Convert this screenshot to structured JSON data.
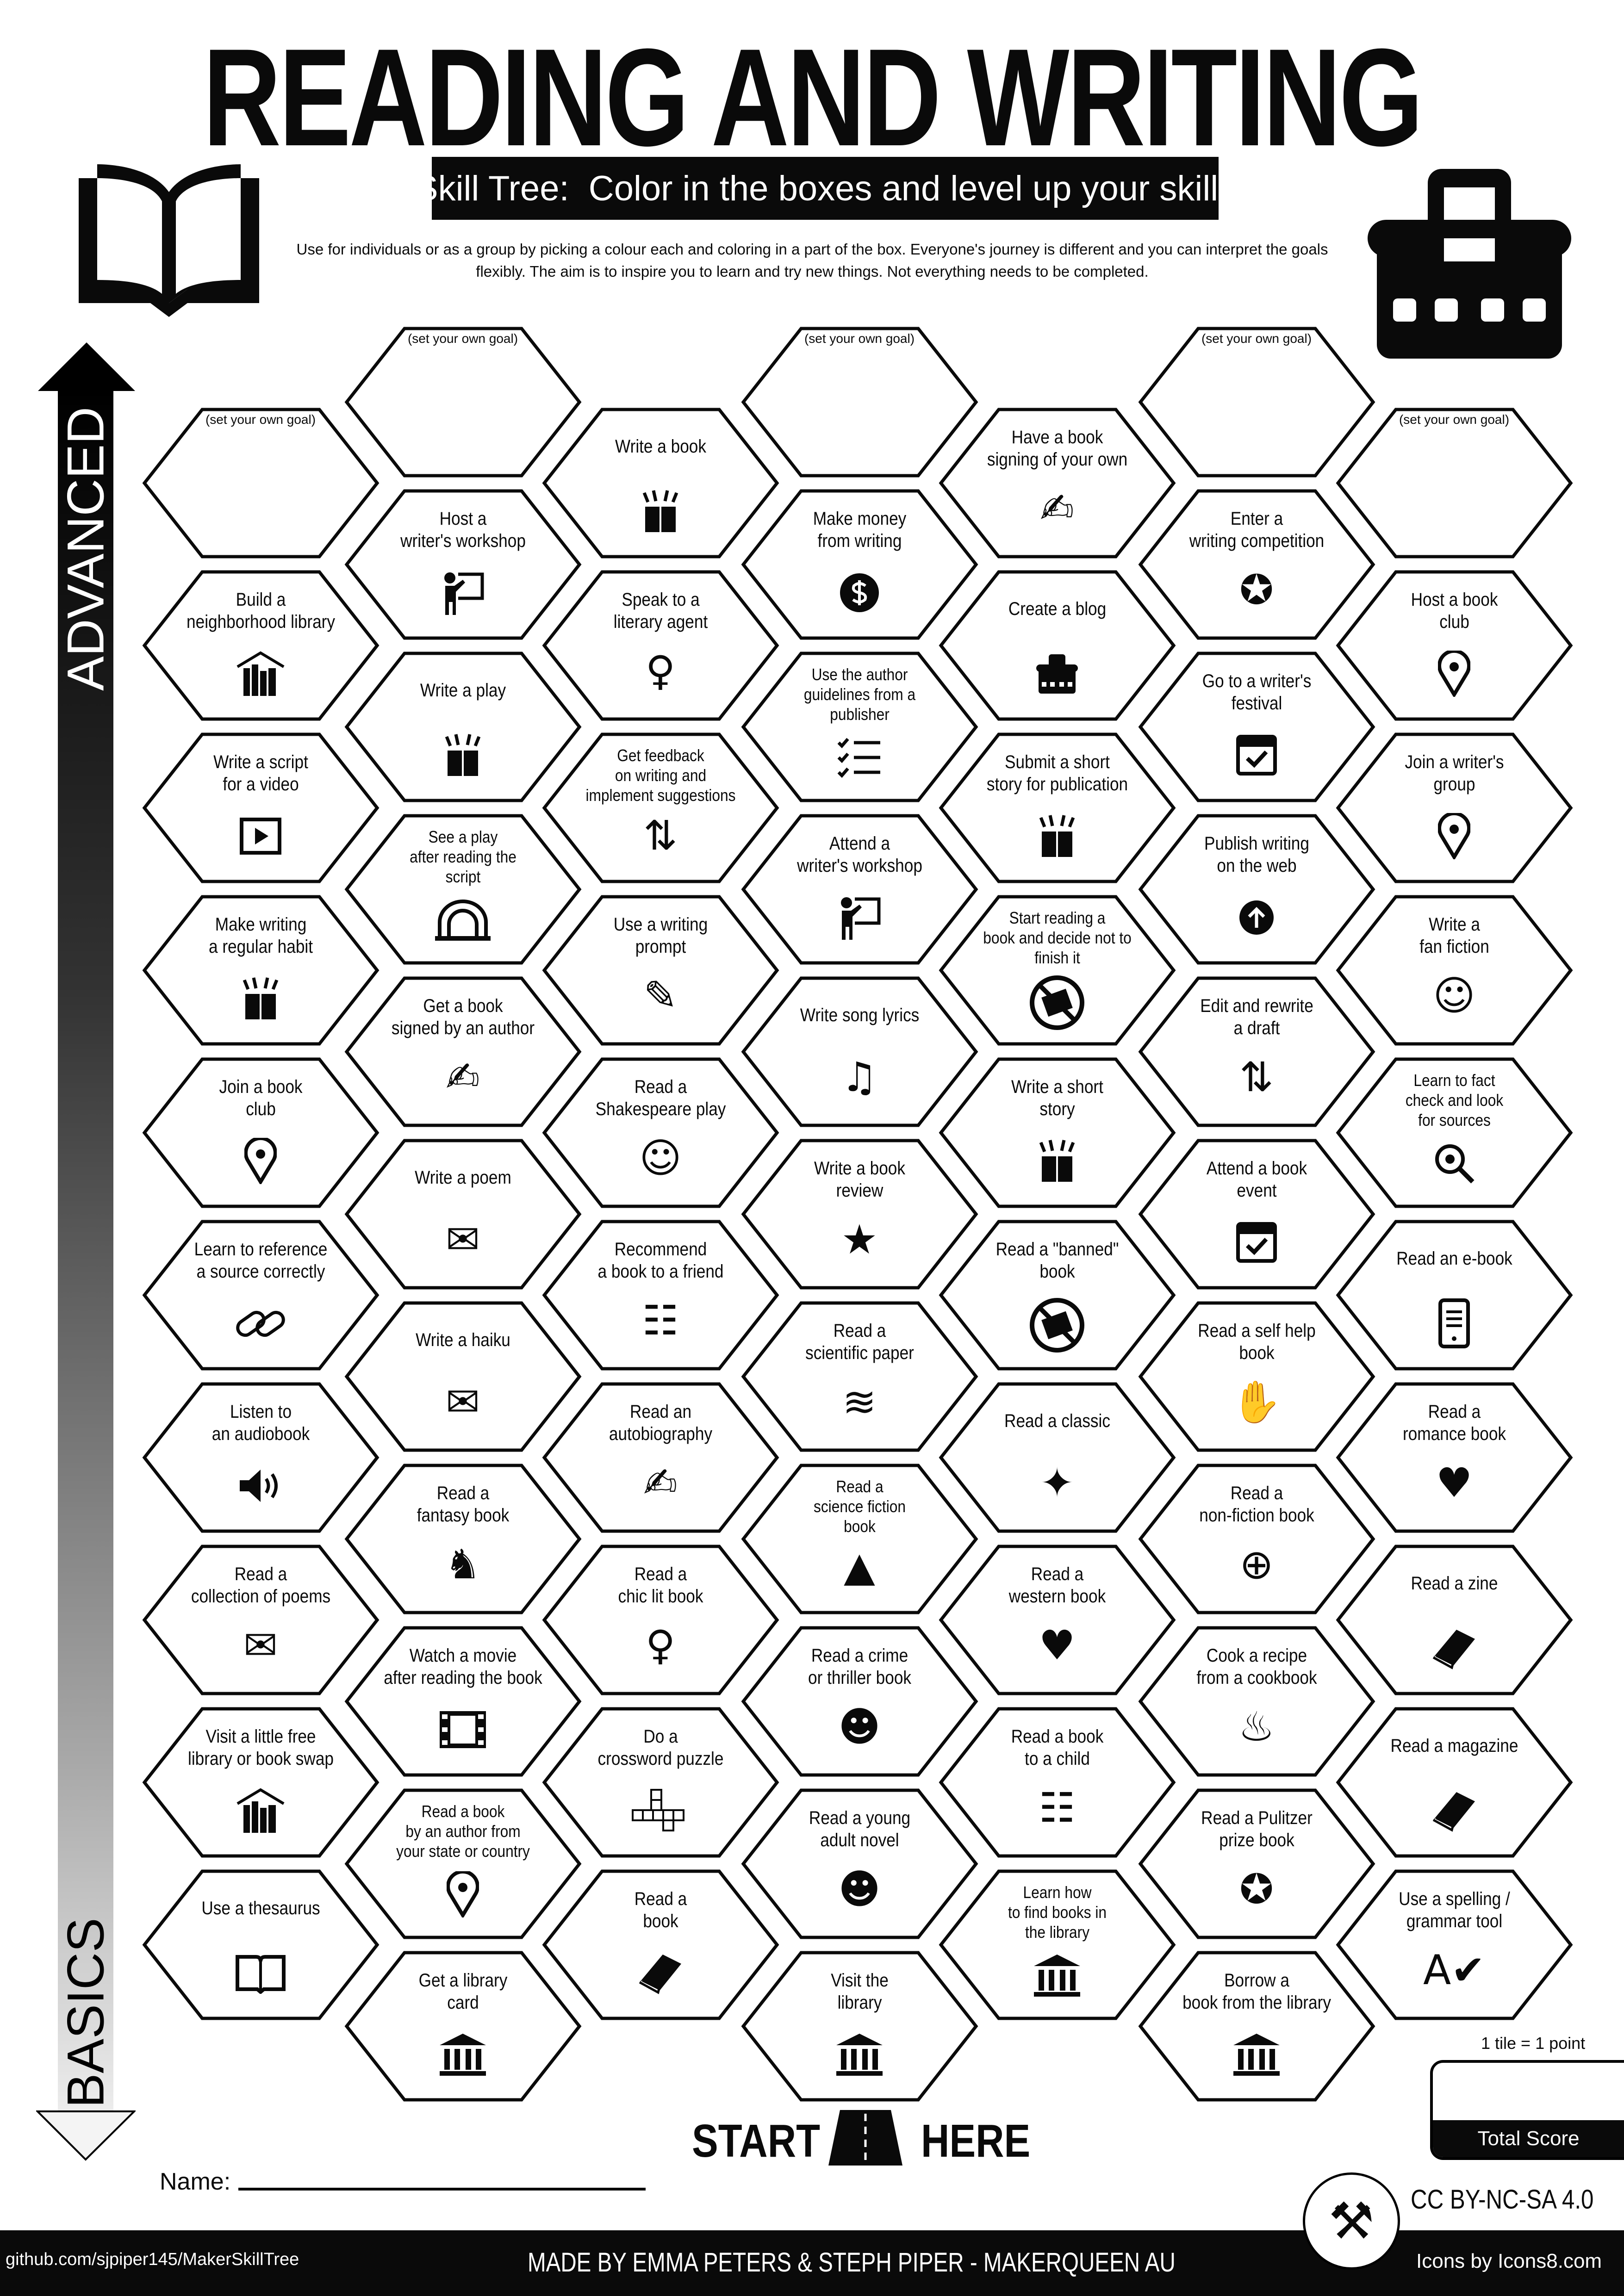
{
  "header": {
    "title": "READING AND WRITING",
    "subtitle": "Skill Tree:  Color in the boxes and level up your skills",
    "intro": "Use for individuals or as a group by picking a colour each and coloring in a part of the box.  Everyone's journey is different and you can interpret the goals flexibly.  The aim is to inspire you to learn and try new things. Not everything needs to be completed.",
    "left_icon": "open-book-icon",
    "right_icon": "typewriter-icon"
  },
  "axis": {
    "top_label": "ADVANCED",
    "bottom_label": "BASICS"
  },
  "goal_text": "(set your own goal)",
  "columns": [
    [
      {
        "goal": true
      },
      {
        "label": "Build a\nneighborhood library",
        "icon": "library-shelf"
      },
      {
        "label": "Write a script\nfor a video",
        "icon": "play-box"
      },
      {
        "label": "Make writing\na regular habit",
        "icon": "book-sparkle"
      },
      {
        "label": "Join a book\nclub",
        "icon": "location-pin"
      },
      {
        "label": "Learn to reference\na source correctly",
        "icon": "chain-link"
      },
      {
        "label": "Listen to\nan audiobook",
        "icon": "speaker"
      },
      {
        "label": "Read a\ncollection of poems",
        "icon": "poem-scroll"
      },
      {
        "label": "Visit a little free\nlibrary or book swap",
        "icon": "library-shelf"
      },
      {
        "label": "Use a thesaurus",
        "icon": "open-book"
      }
    ],
    [
      {
        "goal": true
      },
      {
        "label": "Host a\nwriter's workshop",
        "icon": "teacher-board"
      },
      {
        "label": "Write a play",
        "icon": "book-sparkle"
      },
      {
        "label": "See a play\nafter reading the\nscript",
        "icon": "theater-stage"
      },
      {
        "label": "Get a book\nsigned by an author",
        "icon": "signature"
      },
      {
        "label": "Write a poem",
        "icon": "poem-scroll"
      },
      {
        "label": "Write a haiku",
        "icon": "poem-scroll"
      },
      {
        "label": "Read a\nfantasy book",
        "icon": "dragon"
      },
      {
        "label": "Watch a movie\nafter reading the book",
        "icon": "film"
      },
      {
        "label": "Read a book\nby an author from\nyour state or country",
        "icon": "location-pin"
      },
      {
        "label": "Get a library\ncard",
        "icon": "library-building"
      }
    ],
    [
      {
        "label": "Write a book",
        "icon": "book-sparkle"
      },
      {
        "label": "Speak to a\nliterary agent",
        "icon": "woman-agent"
      },
      {
        "label": "Get feedback\non writing and\nimplement suggestions",
        "icon": "thumbs-up-down"
      },
      {
        "label": "Use a writing\nprompt",
        "icon": "pen-scribble"
      },
      {
        "label": "Read a\nShakespeare play",
        "icon": "shakespeare"
      },
      {
        "label": "Recommend\na book to a friend",
        "icon": "people-desk"
      },
      {
        "label": "Read an\nautobiography",
        "icon": "person-edit"
      },
      {
        "label": "Read a\nchic lit book",
        "icon": "woman"
      },
      {
        "label": "Do a\ncrossword puzzle",
        "icon": "crossword"
      },
      {
        "label": "Read a\nbook",
        "icon": "closed-book"
      }
    ],
    [
      {
        "goal": true
      },
      {
        "label": "Make money\nfrom writing",
        "icon": "dollar-coin"
      },
      {
        "label": "Use the author\nguidelines from a\npublisher",
        "icon": "checklist"
      },
      {
        "label": "Attend a\nwriter's workshop",
        "icon": "teacher-board"
      },
      {
        "label": "Write song lyrics",
        "icon": "music-sheet"
      },
      {
        "label": "Write a book\nreview",
        "icon": "chat-star"
      },
      {
        "label": "Read a\nscientific paper",
        "icon": "dna"
      },
      {
        "label": "Read a\nscience fiction\nbook",
        "icon": "rocket"
      },
      {
        "label": "Read a crime\nor thriller book",
        "icon": "thief"
      },
      {
        "label": "Read a young\nadult novel",
        "icon": "young-person"
      },
      {
        "label": "Visit the\nlibrary",
        "icon": "library-building"
      }
    ],
    [
      {
        "label": "Have a book\nsigning of your own",
        "icon": "signature"
      },
      {
        "label": "Create a blog",
        "icon": "typewriter"
      },
      {
        "label": "Submit a short\nstory for publication",
        "icon": "book-sparkle"
      },
      {
        "label": "Start reading a\nbook and decide not to\nfinish it",
        "icon": "no-book"
      },
      {
        "label": "Write a short\nstory",
        "icon": "book-sparkle"
      },
      {
        "label": "Read a \"banned\"\nbook",
        "icon": "no-book"
      },
      {
        "label": "Read a classic",
        "icon": "book-stars"
      },
      {
        "label": "Read a\nwestern book",
        "icon": "cowboy-heart"
      },
      {
        "label": "Read a book\nto a child",
        "icon": "people-desk"
      },
      {
        "label": "Learn how\nto find books in\nthe library",
        "icon": "library-building"
      }
    ],
    [
      {
        "goal": true
      },
      {
        "label": "Enter a\nwriting competition",
        "icon": "award-seal"
      },
      {
        "label": "Go to a writer's\nfestival",
        "icon": "calendar-check"
      },
      {
        "label": "Publish writing\non the web",
        "icon": "upload-circle"
      },
      {
        "label": "Edit and rewrite\na draft",
        "icon": "thumbs-up-down"
      },
      {
        "label": "Attend a book\nevent",
        "icon": "calendar-check"
      },
      {
        "label": "Read a self help\nbook",
        "icon": "hand-heart"
      },
      {
        "label": "Read a\nnon-fiction book",
        "icon": "globe"
      },
      {
        "label": "Cook a recipe\nfrom a cookbook",
        "icon": "cooking-pot"
      },
      {
        "label": "Read a Pulitzer\nprize book",
        "icon": "award-seal"
      },
      {
        "label": "Borrow a\nbook from the library",
        "icon": "library-building"
      }
    ],
    [
      {
        "goal": true
      },
      {
        "label": "Host a book\nclub",
        "icon": "location-pin"
      },
      {
        "label": "Join a writer's\ngroup",
        "icon": "location-pin"
      },
      {
        "label": "Write a\nfan fiction",
        "icon": "vampire-face"
      },
      {
        "label": "Learn to fact\ncheck and look\nfor sources",
        "icon": "magnifier"
      },
      {
        "label": "Read an e-book",
        "icon": "ereader"
      },
      {
        "label": "Read a\nromance book",
        "icon": "hearts"
      },
      {
        "label": "Read a zine",
        "icon": "closed-book"
      },
      {
        "label": "Read a magazine",
        "icon": "closed-book"
      },
      {
        "label": "Use a spelling /\ngrammar tool",
        "icon": "spell-check"
      }
    ]
  ],
  "start": {
    "left": "START",
    "right": "HERE",
    "icon": "road-icon"
  },
  "name_label": "Name:",
  "score": {
    "note": "1 tile = 1 point",
    "label": "Total Score"
  },
  "license": "CC BY-NC-SA 4.0",
  "logo_icon": "maker-tools-logo",
  "footer": {
    "github": "github.com/sjpiper145/MakerSkillTree",
    "made_by": "MADE BY EMMA PETERS & STEPH PIPER  -  MAKERQUEEN AU",
    "icons_credit": "Icons by Icons8.com"
  },
  "colors": {
    "ink": "#0a0a0a",
    "paper": "#ffffff",
    "gradient_top": "#000000",
    "gradient_bottom": "#eeeeee"
  }
}
